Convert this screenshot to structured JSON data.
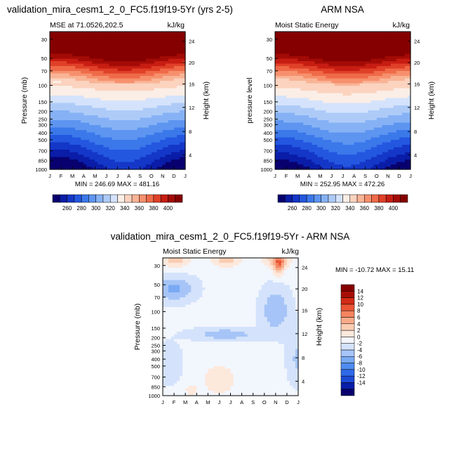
{
  "colors": {
    "warm_palette": [
      "#08006e",
      "#0a1da8",
      "#1437c8",
      "#2457e0",
      "#3b78ea",
      "#5d95f0",
      "#86b2f5",
      "#aecbf8",
      "#d4e3fb",
      "#fbeee6",
      "#fbd3bf",
      "#f9b496",
      "#f6906d",
      "#ef6a48",
      "#e04028",
      "#c71d12",
      "#a30b06",
      "#850000"
    ],
    "diff_palette": [
      "#08006e",
      "#0a1da8",
      "#1c4bd6",
      "#2e6ae8",
      "#4f8cef",
      "#79aaf3",
      "#a6c4f7",
      "#d4e3fb",
      "#f2f6fd",
      "#fde8dc",
      "#fbcdb3",
      "#f8ab8a",
      "#f4845f",
      "#ea5535",
      "#d22b16",
      "#a80e06",
      "#850000"
    ]
  },
  "chart_data": [
    {
      "type": "heatmap",
      "title": "validation_mira_cesm1_2_0_FC5.f19f19-5Yr (yrs 2-5)",
      "subtitle_left": "MSE at 71.0526,202.5",
      "subtitle_right": "kJ/kg",
      "ylabel": "Pressure (mb)",
      "y2label": "Height (km)",
      "x_ticks": [
        "J",
        "F",
        "M",
        "A",
        "M",
        "J",
        "J",
        "A",
        "S",
        "O",
        "N",
        "D",
        "J"
      ],
      "y_ticks": [
        "30",
        "50",
        "70",
        "100",
        "150",
        "200",
        "250",
        "300",
        "400",
        "500",
        "700",
        "850",
        "1000"
      ],
      "y2_ticks": [
        "24",
        "20",
        "16",
        "12",
        "8",
        "4"
      ],
      "min_max": "MIN = 246.69 MAX = 481.16",
      "min": 246.69,
      "max": 481.16,
      "colorbar_labels": [
        "260",
        "280",
        "300",
        "320",
        "340",
        "360",
        "380",
        "400"
      ],
      "levels": [
        250,
        260,
        270,
        280,
        290,
        300,
        310,
        320,
        330,
        340,
        350,
        360,
        370,
        380,
        390,
        400,
        410
      ]
    },
    {
      "type": "heatmap",
      "title": "ARM NSA",
      "subtitle_left": "Moist Static Energy",
      "subtitle_right": "kJ/kg",
      "ylabel": "pressure level",
      "y2label": "Height (km)",
      "x_ticks": [
        "J",
        "F",
        "M",
        "A",
        "M",
        "J",
        "J",
        "A",
        "S",
        "O",
        "N",
        "D",
        "J"
      ],
      "y_ticks": [
        "30",
        "50",
        "70",
        "100",
        "150",
        "200",
        "250",
        "300",
        "400",
        "500",
        "700",
        "850",
        "1000"
      ],
      "y2_ticks": [
        "24",
        "20",
        "16",
        "12",
        "8",
        "4"
      ],
      "min_max": "MIN = 252.95 MAX = 472.26",
      "min": 252.95,
      "max": 472.26,
      "colorbar_labels": [
        "260",
        "280",
        "300",
        "320",
        "340",
        "360",
        "380",
        "400"
      ],
      "levels": [
        250,
        260,
        270,
        280,
        290,
        300,
        310,
        320,
        330,
        340,
        350,
        360,
        370,
        380,
        390,
        400,
        410
      ]
    },
    {
      "type": "heatmap",
      "title": "validation_mira_cesm1_2_0_FC5.f19f19-5Yr - ARM NSA",
      "subtitle_left": "Moist Static Energy",
      "subtitle_right": "kJ/kg",
      "ylabel": "Pressure (mb)",
      "y2label": "Height (km)",
      "x_ticks": [
        "J",
        "F",
        "M",
        "A",
        "M",
        "J",
        "J",
        "A",
        "S",
        "O",
        "N",
        "D",
        "J"
      ],
      "y_ticks": [
        "30",
        "50",
        "70",
        "100",
        "150",
        "200",
        "250",
        "300",
        "400",
        "500",
        "700",
        "850",
        "1000"
      ],
      "y2_ticks": [
        "24",
        "20",
        "16",
        "12",
        "8",
        "4"
      ],
      "min_max": "MIN = -10.72 MAX =  15.11",
      "min": -10.72,
      "max": 15.11,
      "colorbar_labels": [
        "14",
        "12",
        "10",
        "8",
        "6",
        "4",
        "2",
        "0",
        "-2",
        "-4",
        "-6",
        "-8",
        "-10",
        "-12",
        "-14"
      ],
      "levels": [
        -15,
        -14,
        -12,
        -10,
        -8,
        -6,
        -4,
        -2,
        0,
        2,
        4,
        6,
        8,
        10,
        12,
        14,
        15
      ]
    }
  ]
}
